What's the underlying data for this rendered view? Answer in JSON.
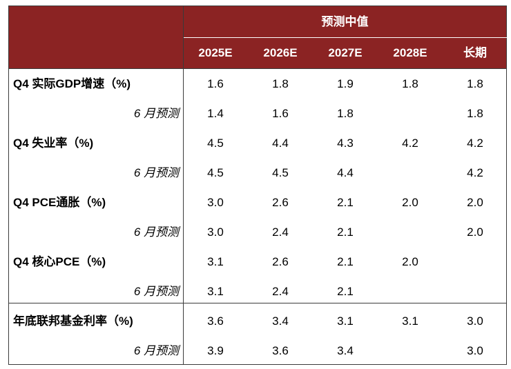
{
  "table": {
    "group_header": "预测中值",
    "columns": [
      "2025E",
      "2026E",
      "2027E",
      "2028E",
      "长期"
    ],
    "rows": [
      {
        "label": "Q4 实际GDP增速（%)",
        "type": "main",
        "values": [
          "1.6",
          "1.8",
          "1.9",
          "1.8",
          "1.8"
        ]
      },
      {
        "label": "6 月预测",
        "type": "sub",
        "values": [
          "1.4",
          "1.6",
          "1.8",
          "",
          "1.8"
        ]
      },
      {
        "label": "Q4 失业率（%)",
        "type": "main",
        "values": [
          "4.5",
          "4.4",
          "4.3",
          "4.2",
          "4.2"
        ]
      },
      {
        "label": "6 月预测",
        "type": "sub",
        "values": [
          "4.5",
          "4.5",
          "4.4",
          "",
          "4.2"
        ]
      },
      {
        "label": "Q4 PCE通胀（%)",
        "type": "main",
        "values": [
          "3.0",
          "2.6",
          "2.1",
          "2.0",
          "2.0"
        ]
      },
      {
        "label": "6 月预测",
        "type": "sub",
        "values": [
          "3.0",
          "2.4",
          "2.1",
          "",
          "2.0"
        ]
      },
      {
        "label": "Q4 核心PCE（%)",
        "type": "main",
        "values": [
          "3.1",
          "2.6",
          "2.1",
          "2.0",
          ""
        ]
      },
      {
        "label": "6 月预测",
        "type": "sub",
        "values": [
          "3.1",
          "2.4",
          "2.1",
          "",
          ""
        ]
      },
      {
        "label": "年底联邦基金利率（%)",
        "type": "main",
        "values": [
          "3.6",
          "3.4",
          "3.1",
          "3.1",
          "3.0"
        ]
      },
      {
        "label": "6 月预测",
        "type": "sub",
        "values": [
          "3.9",
          "3.6",
          "3.4",
          "",
          "3.0"
        ]
      }
    ]
  }
}
